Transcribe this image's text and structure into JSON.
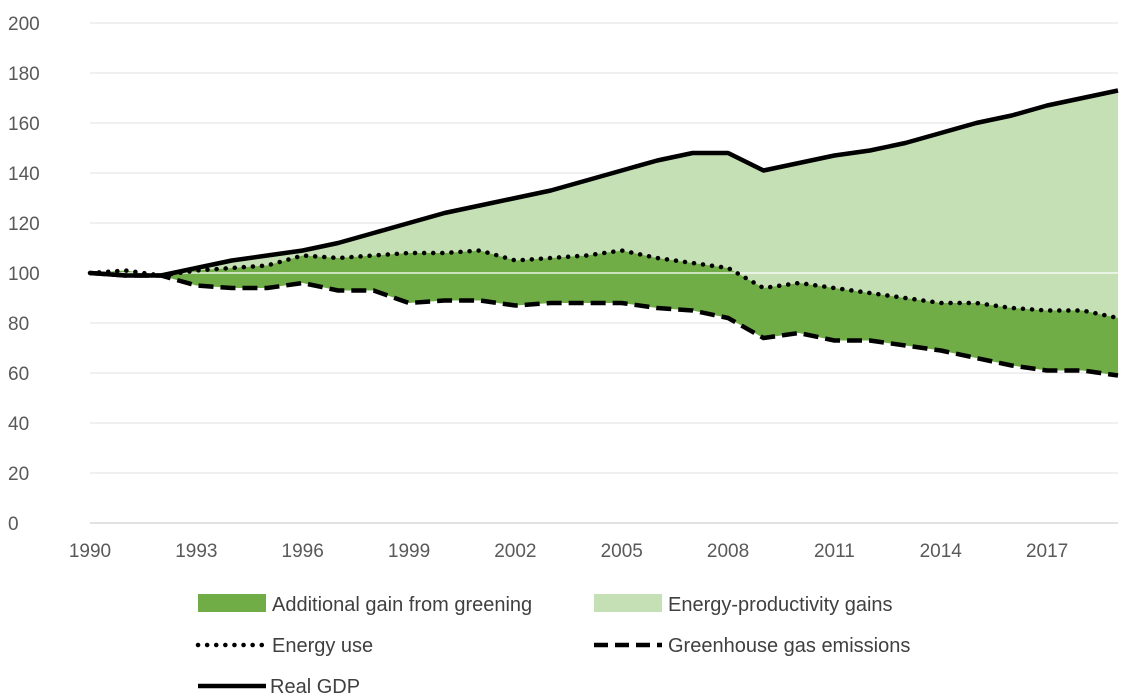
{
  "colors": {
    "greening_fill": "#70ad47",
    "productivity_fill": "#c5e0b4",
    "line": "#000000",
    "grid": "#e8e8e8",
    "tick_text": "#595959",
    "legend_text": "#404040"
  },
  "chart_data": {
    "type": "area",
    "x": [
      1990,
      1991,
      1992,
      1993,
      1994,
      1995,
      1996,
      1997,
      1998,
      1999,
      2000,
      2001,
      2002,
      2003,
      2004,
      2005,
      2006,
      2007,
      2008,
      2009,
      2010,
      2011,
      2012,
      2013,
      2014,
      2015,
      2016,
      2017,
      2018,
      2019
    ],
    "series": [
      {
        "name": "Real GDP",
        "style": "solid",
        "values": [
          100,
          99,
          99,
          102,
          105,
          107,
          109,
          112,
          116,
          120,
          124,
          127,
          130,
          133,
          137,
          141,
          145,
          148,
          148,
          141,
          144,
          147,
          149,
          152,
          156,
          160,
          163,
          167,
          170,
          173
        ]
      },
      {
        "name": "Energy use",
        "style": "dotted",
        "values": [
          100,
          101,
          99,
          101,
          102,
          103,
          107,
          106,
          107,
          108,
          108,
          109,
          105,
          106,
          107,
          109,
          106,
          104,
          102,
          94,
          96,
          94,
          92,
          90,
          88,
          88,
          86,
          85,
          85,
          82
        ]
      },
      {
        "name": "Greenhouse gas emissions",
        "style": "dashed",
        "values": [
          100,
          99,
          99,
          95,
          94,
          94,
          96,
          93,
          93,
          88,
          89,
          89,
          87,
          88,
          88,
          88,
          86,
          85,
          82,
          74,
          76,
          73,
          73,
          71,
          69,
          66,
          63,
          61,
          61,
          59
        ]
      },
      {
        "name": "Additional gain from greening",
        "style": "fill-dark",
        "description_of_bounds": [
          "Greenhouse gas emissions",
          "Energy use"
        ]
      },
      {
        "name": "Energy-productivity gains",
        "style": "fill-light",
        "description_of_bounds": [
          "Energy use",
          "Real GDP"
        ]
      }
    ],
    "ylim": [
      0,
      200
    ],
    "yticks": [
      0,
      20,
      40,
      60,
      80,
      100,
      120,
      140,
      160,
      180,
      200
    ],
    "xticks": [
      1990,
      1993,
      1996,
      1999,
      2002,
      2005,
      2008,
      2011,
      2014,
      2017
    ],
    "grid": true,
    "legend_position": "bottom"
  },
  "legend": {
    "items": [
      {
        "label": "Additional gain from greening",
        "style": "fill-dark"
      },
      {
        "label": "Energy-productivity gains",
        "style": "fill-light"
      },
      {
        "label": "Energy use",
        "style": "dotted"
      },
      {
        "label": "Greenhouse gas emissions",
        "style": "dashed"
      },
      {
        "label": "Real GDP",
        "style": "solid"
      }
    ]
  }
}
